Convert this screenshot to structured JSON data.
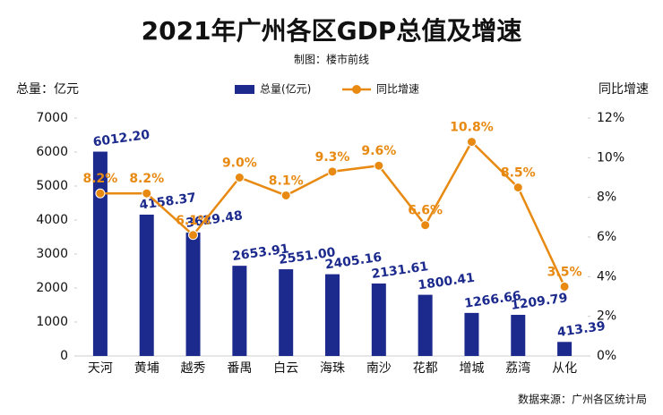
{
  "chart_data": {
    "type": "combo",
    "title": "2021年广州各区GDP总值及增速",
    "subtitle": "制图：楼市前线",
    "y_label": "总量：亿元",
    "y2_label": "同比增速",
    "source": "数据来源：广州各区统计局",
    "categories": [
      "天河",
      "黄埔",
      "越秀",
      "番禺",
      "白云",
      "海珠",
      "南沙",
      "花都",
      "增城",
      "荔湾",
      "从化"
    ],
    "series": [
      {
        "name": "总量(亿元)",
        "type": "bar",
        "color": "#1b2a8c",
        "values": [
          6012.2,
          4158.37,
          3629.48,
          2653.91,
          2551.0,
          2405.16,
          2131.61,
          1800.41,
          1266.66,
          1209.79,
          413.39
        ],
        "value_labels": [
          "6012.20",
          "4158.37",
          "3629.48",
          "2653.91",
          "2551.00",
          "2405.16",
          "2131.61",
          "1800.41",
          "1266.66",
          "1209.79",
          "413.39"
        ]
      },
      {
        "name": "同比增速",
        "type": "line",
        "axis": "y2",
        "color": "#e88a12",
        "values": [
          8.2,
          8.2,
          6.1,
          9.0,
          8.1,
          9.3,
          9.6,
          6.6,
          10.8,
          8.5,
          3.5
        ],
        "value_labels": [
          "8.2%",
          "8.2%",
          "6.1%",
          "9.0%",
          "8.1%",
          "9.3%",
          "9.6%",
          "6.6%",
          "10.8%",
          "8.5%",
          "3.5%"
        ]
      }
    ],
    "ylim": [
      0,
      7000
    ],
    "yticks": [
      0,
      1000,
      2000,
      3000,
      4000,
      5000,
      6000,
      7000
    ],
    "y2lim": [
      0,
      12
    ],
    "y2ticks": [
      {
        "value": 0,
        "label": "0%"
      },
      {
        "value": 2,
        "label": "2%"
      },
      {
        "value": 4,
        "label": "4%"
      },
      {
        "value": 6,
        "label": "6%"
      },
      {
        "value": 8,
        "label": "8%"
      },
      {
        "value": 10,
        "label": "10%"
      },
      {
        "value": 12,
        "label": "12%"
      }
    ],
    "grid": false,
    "legend": "top"
  }
}
